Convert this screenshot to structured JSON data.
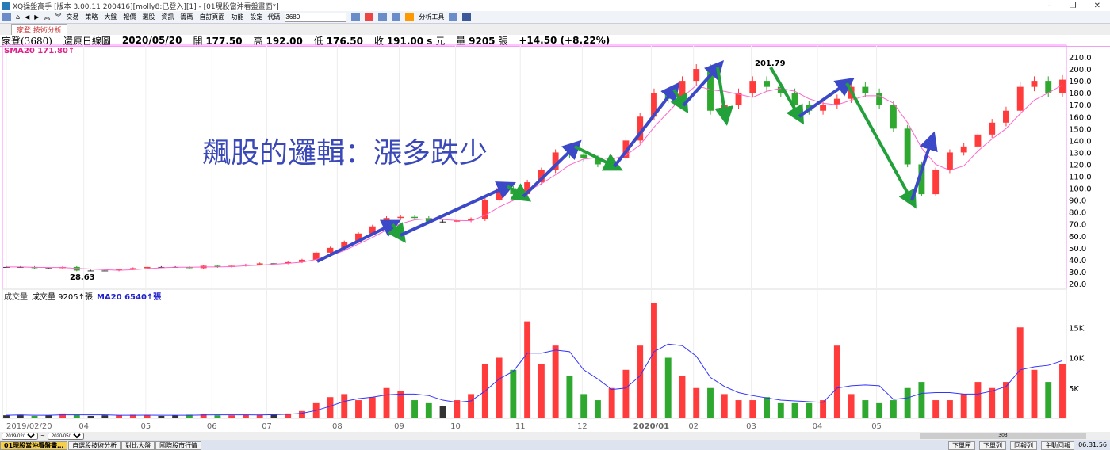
{
  "window": {
    "title": "XQ操盤高手 [版本 3.00.11 200416][molly8:已登入][1] - [01現股當沖看盤畫面*]"
  },
  "toolbar": {
    "menus": [
      "交易",
      "策略",
      "大盤",
      "報價",
      "選股",
      "資訊",
      "籌碼",
      "自訂頁面",
      "功能",
      "設定"
    ],
    "code_label": "代碼",
    "code_value": "3680",
    "tools_label": "分析工具"
  },
  "tab": {
    "label": "家登 技術分析"
  },
  "info": {
    "stock": "家登(3680)",
    "chart_type": "還原日線圖",
    "date": "2020/05/20",
    "open_label": "開",
    "open": "177.50",
    "high_label": "高",
    "high": "192.00",
    "low_label": "低",
    "low": "176.50",
    "close_label": "收",
    "close": "191.00 s",
    "unit": "元",
    "vol_label": "量",
    "vol": "9205",
    "vol_unit": "張",
    "change": "+14.50 (+8.22%)"
  },
  "sma_label": "SMA20 171.80↑",
  "volume_panel": {
    "title": "成交量",
    "vol_label": "成交量 9205↑張",
    "ma_label": "MA20 6540↑張"
  },
  "annotation": {
    "text": "飆股的邏輯：漲多跌少",
    "high_mark": "201.79",
    "low_mark": "28.63"
  },
  "colors": {
    "up": "#ff3b3b",
    "down": "#2ea82e",
    "flat": "#333333",
    "sma": "#ff66cc",
    "vol_ma": "#3333ff",
    "arrow_up": "#3b48c8",
    "arrow_down": "#22a03a"
  },
  "chart_data": [
    {
      "type": "candlestick",
      "ylim": [
        20,
        210
      ],
      "yticks": [
        "210.0",
        "200.0",
        "190.0",
        "180.0",
        "170.0",
        "160.0",
        "150.0",
        "140.0",
        "130.0",
        "120.0",
        "110.0",
        "100.0",
        "90.0",
        "80.0",
        "70.0",
        "60.0",
        "50.0",
        "40.0",
        "30.0",
        "20.0"
      ],
      "xticks": [
        {
          "w": 0,
          "label": "2019/02/20"
        },
        {
          "w": 5.5,
          "label": "04"
        },
        {
          "w": 9.9,
          "label": "05"
        },
        {
          "w": 14.6,
          "label": "06"
        },
        {
          "w": 18.5,
          "label": "07"
        },
        {
          "w": 23.5,
          "label": "08"
        },
        {
          "w": 27.9,
          "label": "09"
        },
        {
          "w": 31.9,
          "label": "10"
        },
        {
          "w": 36.5,
          "label": "11"
        },
        {
          "w": 40.9,
          "label": "12"
        },
        {
          "w": 45.8,
          "label": "2020/01"
        },
        {
          "w": 48.8,
          "label": "02"
        },
        {
          "w": 52.9,
          "label": "03"
        },
        {
          "w": 57.6,
          "label": "04"
        },
        {
          "w": 61.8,
          "label": "05"
        }
      ],
      "close": [
        34,
        34,
        33,
        33,
        34,
        31,
        31,
        31,
        32,
        33,
        34,
        34,
        34,
        33,
        35,
        34,
        35,
        36,
        37,
        37,
        38,
        40,
        46,
        50,
        55,
        62,
        68,
        75,
        76,
        75,
        72,
        72,
        73,
        74,
        90,
        100,
        95,
        105,
        115,
        130,
        128,
        125,
        120,
        125,
        140,
        160,
        180,
        175,
        190,
        200,
        165,
        170,
        180,
        190,
        185,
        180,
        170,
        165,
        170,
        175,
        185,
        180,
        170,
        150,
        120,
        95,
        115,
        130,
        135,
        145,
        155,
        165,
        185,
        190,
        180,
        191
      ],
      "volume_k": [
        0.5,
        0.6,
        0.4,
        0.5,
        0.8,
        0.6,
        0.4,
        0.5,
        0.5,
        0.6,
        0.5,
        0.4,
        0.5,
        0.6,
        0.7,
        0.5,
        0.5,
        0.6,
        0.6,
        0.7,
        0.8,
        1.2,
        2.5,
        3.5,
        4,
        3,
        3.5,
        5,
        4.5,
        3,
        2.5,
        2,
        3,
        4,
        9,
        10,
        8,
        16,
        9,
        12,
        7,
        4,
        3,
        5,
        8,
        12,
        19,
        10,
        7,
        5,
        5,
        4,
        3,
        3,
        3.5,
        2.5,
        2.5,
        2.5,
        3,
        12,
        4,
        3,
        2.5,
        3,
        5,
        6,
        3,
        3,
        4,
        6,
        5,
        6,
        15,
        8,
        6,
        9
      ],
      "vol_yticks": [
        "15K",
        "10K",
        "5K"
      ]
    }
  ]
}
